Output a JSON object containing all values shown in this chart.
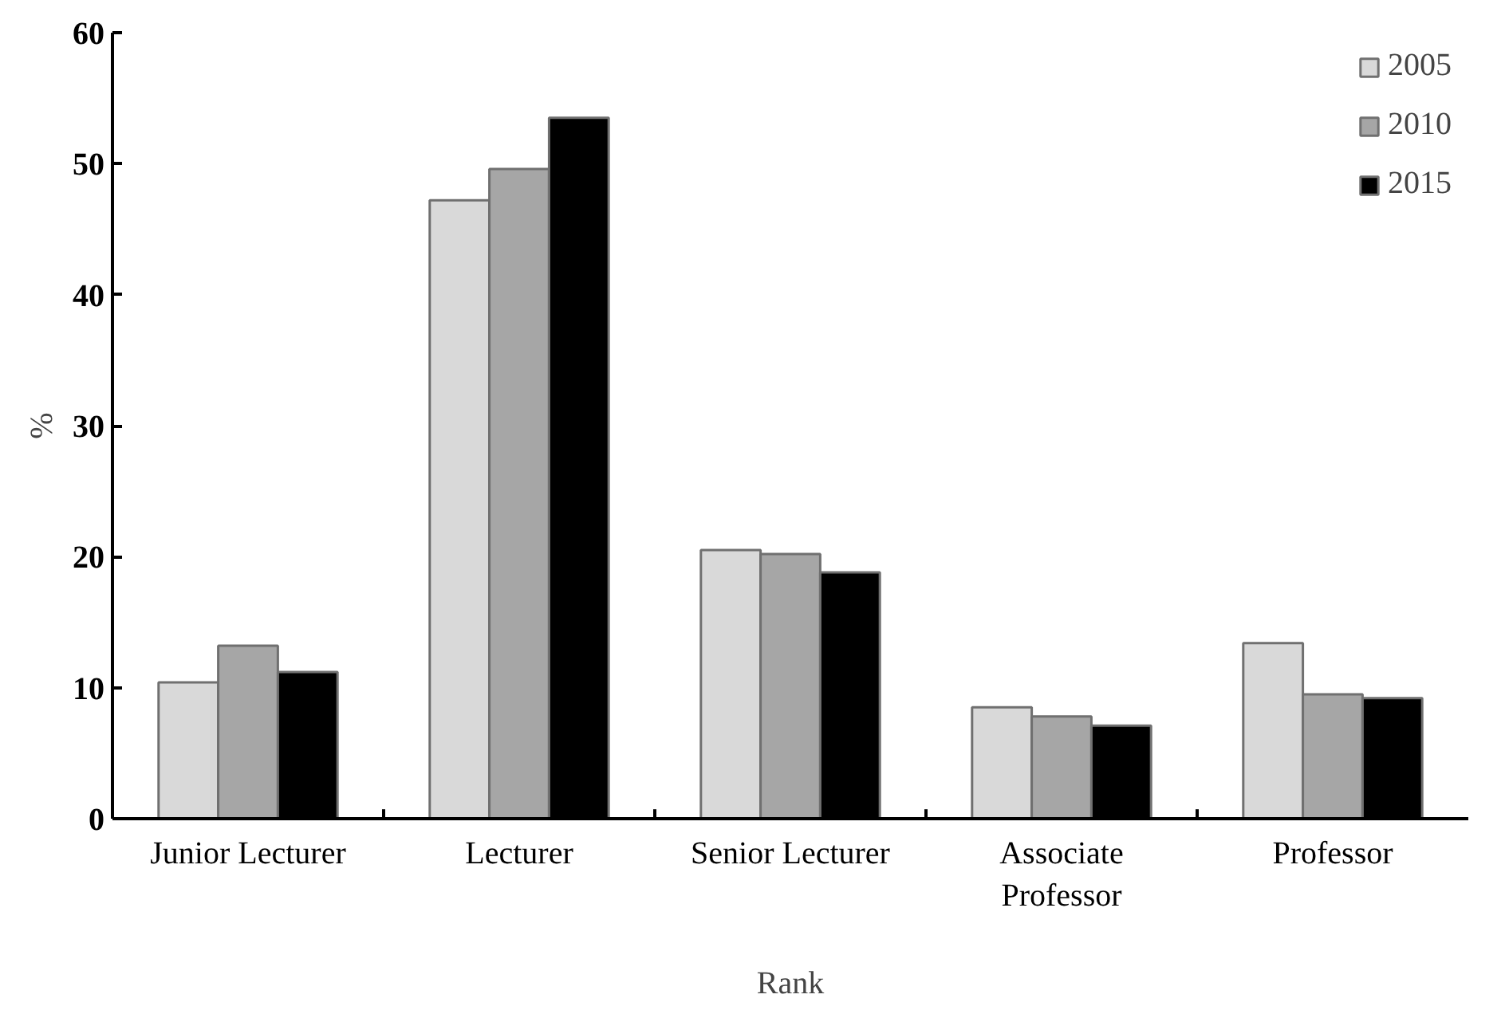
{
  "chart_data": {
    "type": "bar",
    "xlabel": "Rank",
    "ylabel": "%",
    "categories": [
      "Junior Lecturer",
      "Lecturer",
      "Senior Lecturer",
      "Associate Professor",
      "Professor"
    ],
    "series": [
      {
        "name": "2005",
        "color": "#d9d9d9",
        "values": [
          10.4,
          47.2,
          20.5,
          8.5,
          13.4
        ]
      },
      {
        "name": "2010",
        "color": "#a6a6a6",
        "values": [
          13.2,
          49.6,
          20.2,
          7.8,
          9.5
        ]
      },
      {
        "name": "2015",
        "color": "#000000",
        "values": [
          11.2,
          53.5,
          18.8,
          7.1,
          9.2
        ]
      }
    ],
    "ylim": [
      0,
      60
    ],
    "yticks": [
      0,
      10,
      20,
      30,
      40,
      50,
      60
    ],
    "grid": false,
    "legend": "top right"
  }
}
